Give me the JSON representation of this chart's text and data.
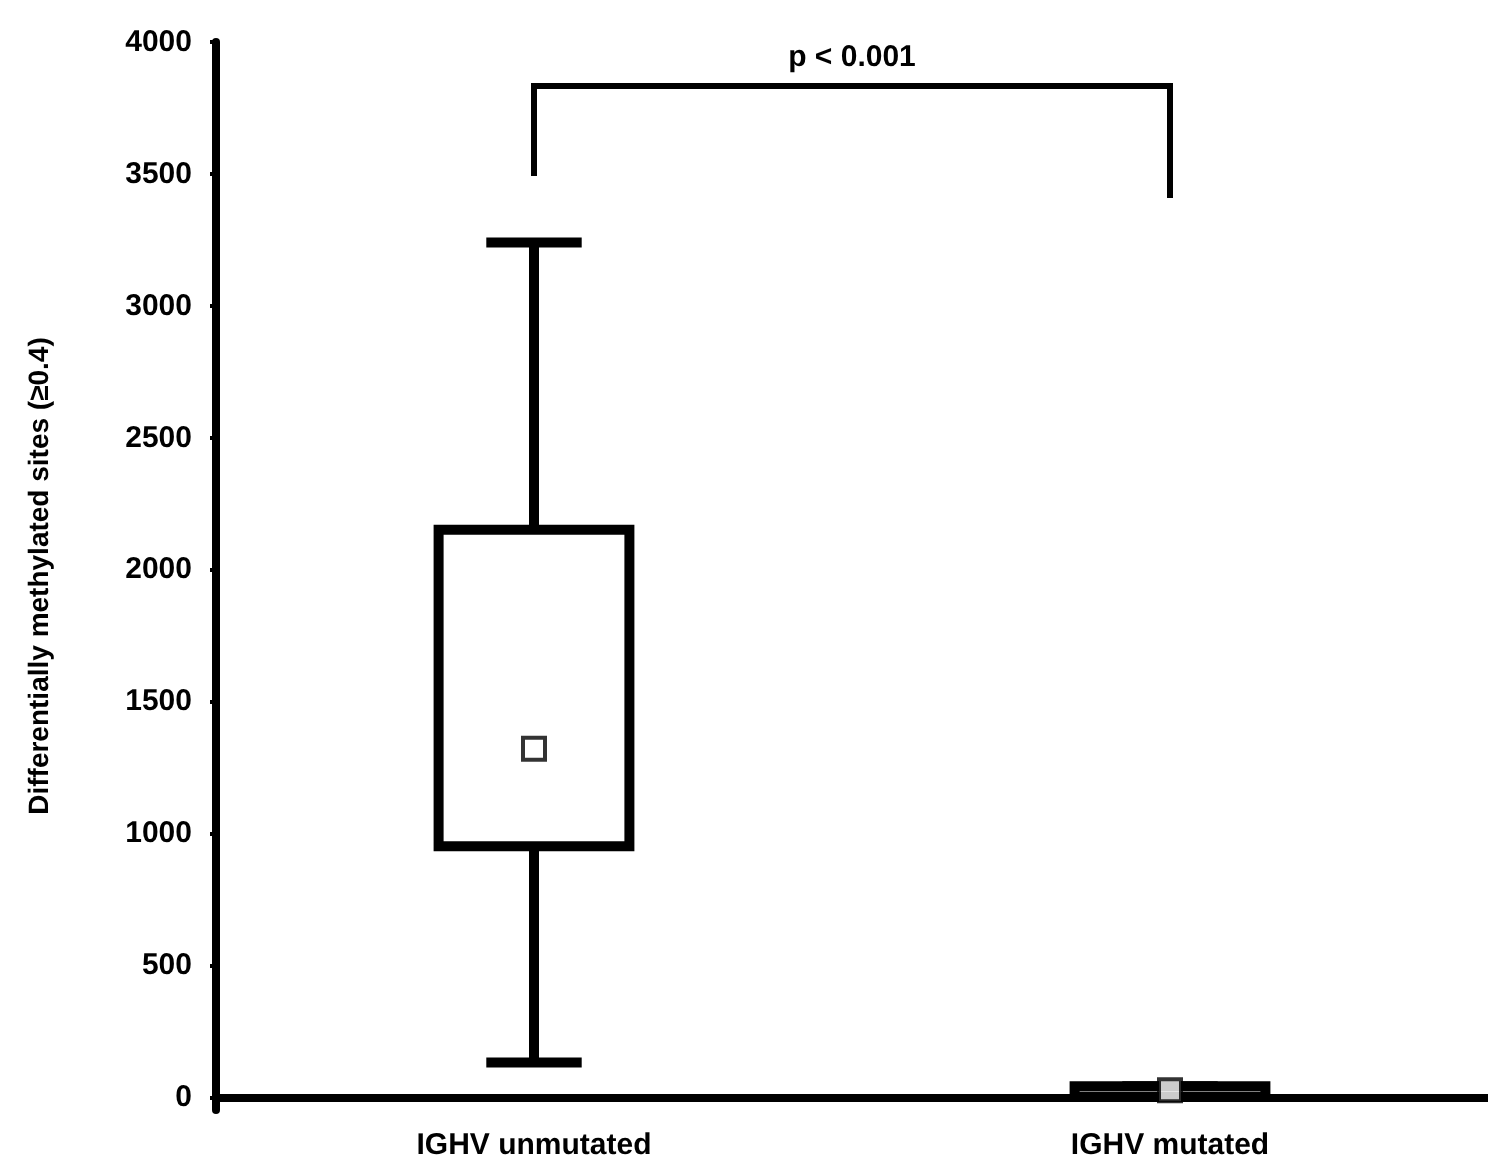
{
  "chart_data": {
    "type": "box",
    "ylabel": "Differentially methylated sites (≥0.4)",
    "categories": [
      "IGHV unmutated",
      "IGHV mutated"
    ],
    "boxes": [
      {
        "low": 130,
        "q1": 950,
        "median": 1320,
        "q3": 2150,
        "high": 3240
      },
      {
        "low": 0,
        "q1": 0,
        "median": 25,
        "q3": 40,
        "high": 40
      }
    ],
    "color": "#000000",
    "marker": "square",
    "ylim": [
      -50,
      4000
    ],
    "yticks": [
      0,
      500,
      1000,
      1500,
      2000,
      2500,
      3000,
      3500,
      4000
    ],
    "grid": false,
    "annotations": [
      "p < 0.001"
    ]
  }
}
